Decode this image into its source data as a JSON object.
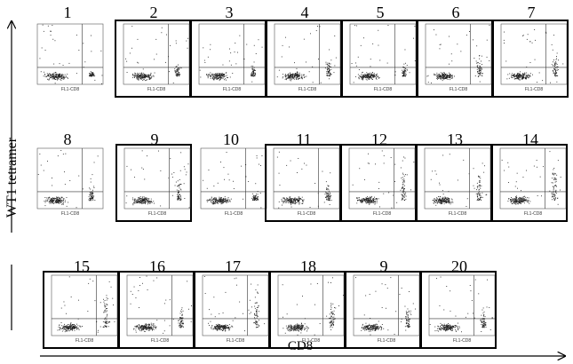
{
  "y_axis_label": "WT1 tetramer",
  "x_axis_label": "CD8",
  "panels": [
    {
      "number": "1",
      "x_label": "FL1-CD8"
    },
    {
      "number": "2",
      "x_label": "FL1-CD8"
    },
    {
      "number": "3",
      "x_label": "FL1-CD8"
    },
    {
      "number": "4",
      "x_label": "FL1-CD8"
    },
    {
      "number": "5",
      "x_label": "FL1-CD8"
    },
    {
      "number": "6",
      "x_label": "FL1-CD8"
    },
    {
      "number": "7",
      "x_label": "FL1-CD8"
    },
    {
      "number": "8",
      "x_label": "FL1-CD8"
    },
    {
      "number": "9",
      "x_label": "FL1-CD8"
    },
    {
      "number": "10",
      "x_label": "FL1-CD8"
    },
    {
      "number": "11",
      "x_label": "FL1-CD8"
    },
    {
      "number": "12",
      "x_label": "FL1-CD8"
    },
    {
      "number": "13",
      "x_label": "FL1-CD8"
    },
    {
      "number": "14",
      "x_label": "FL1-CD8"
    },
    {
      "number": "15",
      "x_label": "FL1-CD8"
    },
    {
      "number": "16",
      "x_label": "FL1-CD8"
    },
    {
      "number": "17",
      "x_label": "FL1-CD8"
    },
    {
      "number": "18",
      "x_label": "FL1-CD8"
    },
    {
      "number": "9",
      "x_label": "FL1-CD8"
    },
    {
      "number": "20",
      "x_label": "FL1-CD8"
    }
  ]
}
